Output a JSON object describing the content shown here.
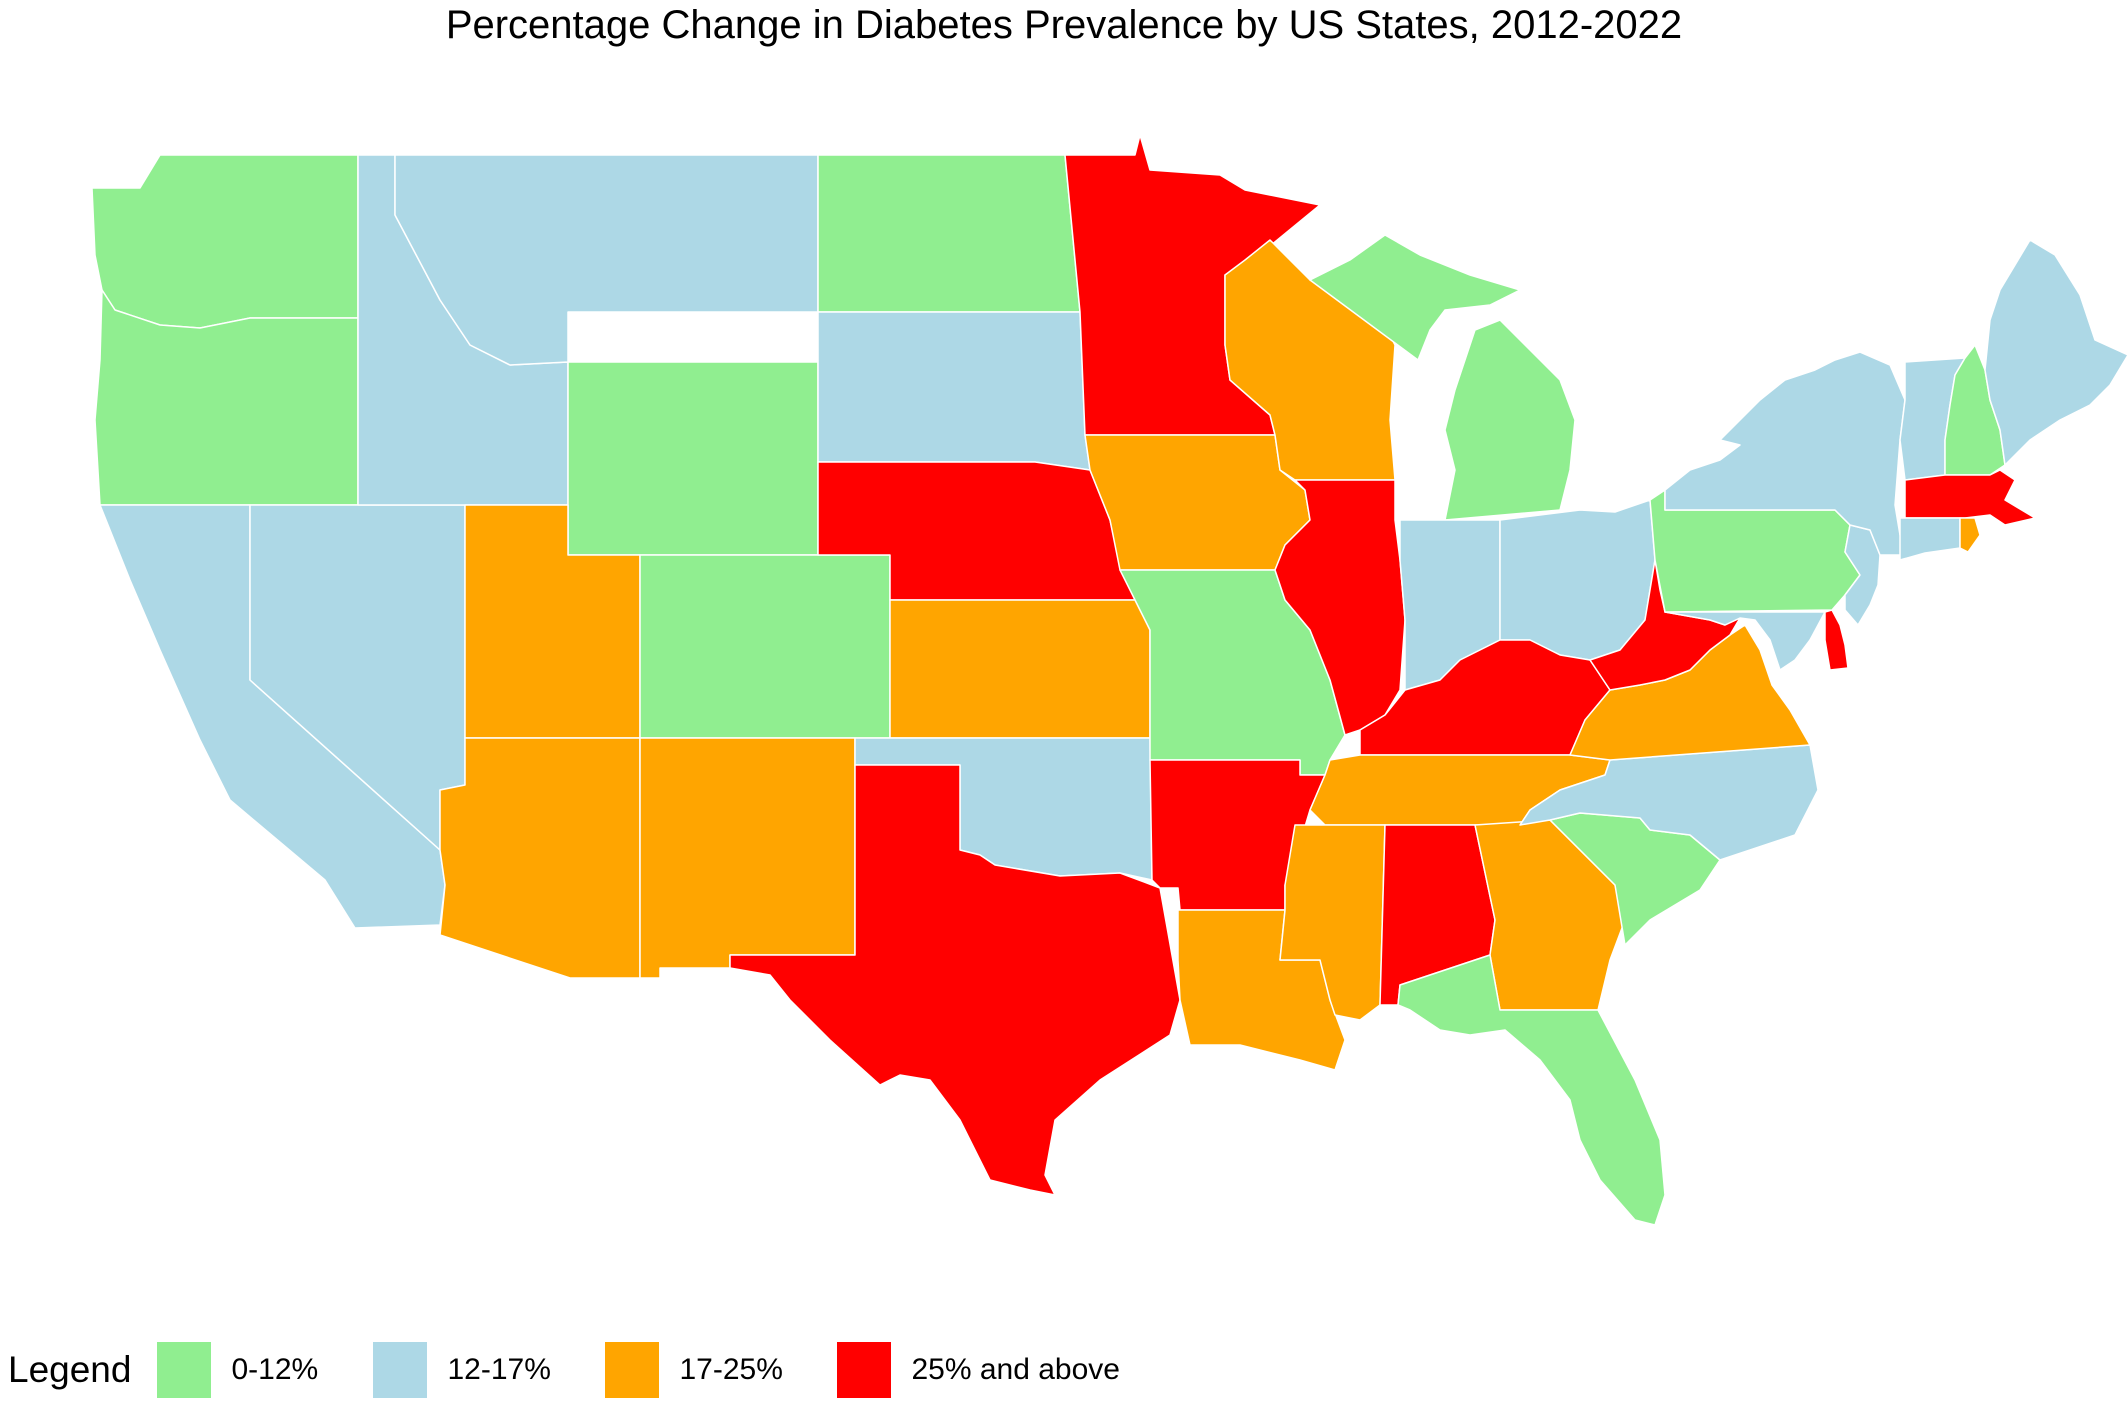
{
  "title": "Percentage Change in Diabetes Prevalence by US States, 2012-2022",
  "legend": {
    "title": "Legend",
    "items": [
      {
        "key": "c1",
        "label": "0-12%",
        "color": "#90EE90"
      },
      {
        "key": "c2",
        "label": "12-17%",
        "color": "#ADD8E6"
      },
      {
        "key": "c3",
        "label": "17-25%",
        "color": "#FFA500"
      },
      {
        "key": "c4",
        "label": "25% and above",
        "color": "#FF0000"
      }
    ]
  },
  "states": [
    {
      "id": "WA",
      "category": "c1"
    },
    {
      "id": "OR",
      "category": "c1"
    },
    {
      "id": "CA",
      "category": "c2"
    },
    {
      "id": "NV",
      "category": "c2"
    },
    {
      "id": "ID",
      "category": "c2"
    },
    {
      "id": "MT",
      "category": "c2"
    },
    {
      "id": "WY",
      "category": "c1"
    },
    {
      "id": "UT",
      "category": "c3"
    },
    {
      "id": "AZ",
      "category": "c3"
    },
    {
      "id": "CO",
      "category": "c1"
    },
    {
      "id": "NM",
      "category": "c3"
    },
    {
      "id": "ND",
      "category": "c1"
    },
    {
      "id": "SD",
      "category": "c2"
    },
    {
      "id": "NE",
      "category": "c4"
    },
    {
      "id": "KS",
      "category": "c3"
    },
    {
      "id": "OK",
      "category": "c2"
    },
    {
      "id": "TX",
      "category": "c4"
    },
    {
      "id": "MN",
      "category": "c4"
    },
    {
      "id": "IA",
      "category": "c3"
    },
    {
      "id": "MO",
      "category": "c1"
    },
    {
      "id": "AR",
      "category": "c4"
    },
    {
      "id": "LA",
      "category": "c3"
    },
    {
      "id": "WI",
      "category": "c3"
    },
    {
      "id": "IL",
      "category": "c4"
    },
    {
      "id": "MI",
      "category": "c1"
    },
    {
      "id": "IN",
      "category": "c2"
    },
    {
      "id": "OH",
      "category": "c2"
    },
    {
      "id": "KY",
      "category": "c4"
    },
    {
      "id": "TN",
      "category": "c3"
    },
    {
      "id": "MS",
      "category": "c3"
    },
    {
      "id": "AL",
      "category": "c4"
    },
    {
      "id": "GA",
      "category": "c3"
    },
    {
      "id": "FL",
      "category": "c1"
    },
    {
      "id": "SC",
      "category": "c1"
    },
    {
      "id": "NC",
      "category": "c2"
    },
    {
      "id": "VA",
      "category": "c3"
    },
    {
      "id": "WV",
      "category": "c4"
    },
    {
      "id": "MD",
      "category": "c2"
    },
    {
      "id": "DE",
      "category": "c4"
    },
    {
      "id": "PA",
      "category": "c1"
    },
    {
      "id": "NJ",
      "category": "c2"
    },
    {
      "id": "NY",
      "category": "c2"
    },
    {
      "id": "CT",
      "category": "c2"
    },
    {
      "id": "RI",
      "category": "c3"
    },
    {
      "id": "MA",
      "category": "c4"
    },
    {
      "id": "VT",
      "category": "c2"
    },
    {
      "id": "NH",
      "category": "c1"
    },
    {
      "id": "ME",
      "category": "c2"
    }
  ]
}
